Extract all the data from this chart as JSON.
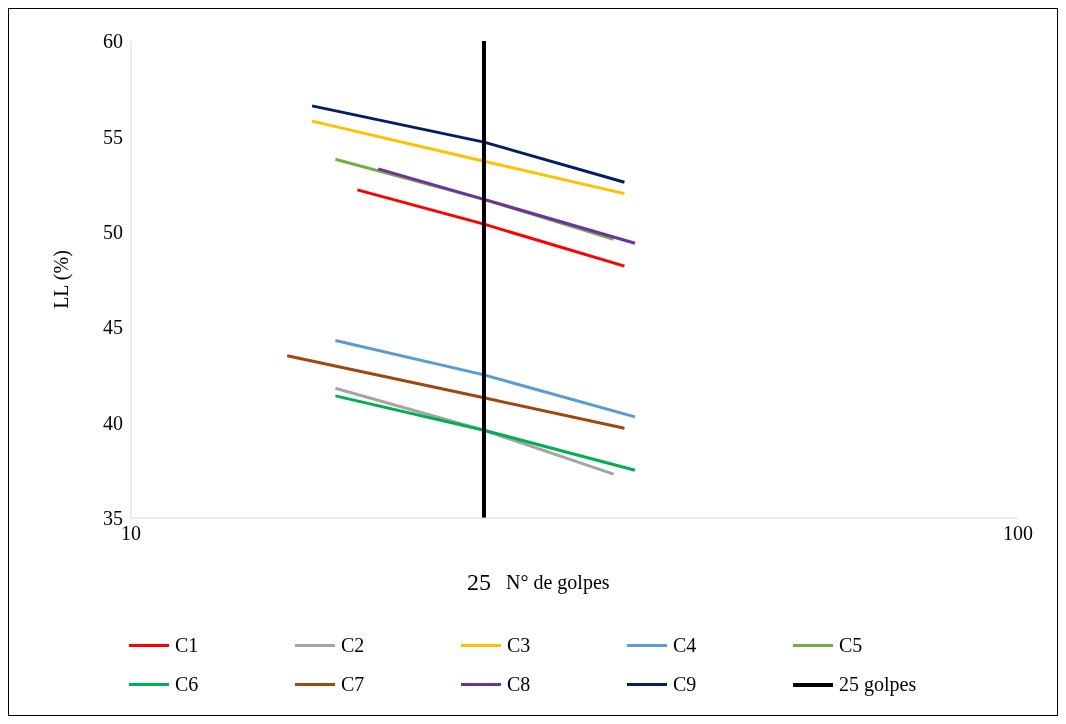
{
  "chart_data": {
    "type": "line",
    "xlabel": "N° de golpes",
    "ylabel": "LL (%)",
    "log": "x",
    "xlim": [
      10,
      100
    ],
    "xticks": [
      10,
      100
    ],
    "ylim": [
      35,
      60
    ],
    "yticks": [
      35,
      40,
      45,
      50,
      55,
      60
    ],
    "grid": false,
    "legend": "bottom",
    "marker": "none",
    "line_style": "solid",
    "series": [
      {
        "name": "C1",
        "color": "#ff0000",
        "x": [
          18,
          25,
          36
        ],
        "values": [
          52.2,
          50.4,
          48.2
        ]
      },
      {
        "name": "C2",
        "color": "#a5a5a5",
        "x": [
          17,
          25,
          35
        ],
        "values": [
          41.8,
          39.6,
          37.3
        ]
      },
      {
        "name": "C3",
        "color": "#ffc000",
        "x": [
          16,
          25,
          36
        ],
        "values": [
          55.8,
          53.7,
          52.0
        ]
      },
      {
        "name": "C4",
        "color": "#5b9bd5",
        "x": [
          17,
          25,
          37
        ],
        "values": [
          44.3,
          42.5,
          40.3
        ]
      },
      {
        "name": "C5",
        "color": "#70ad47",
        "x": [
          17,
          25,
          35
        ],
        "values": [
          53.8,
          51.7,
          49.6
        ]
      },
      {
        "name": "C6",
        "color": "#00b050",
        "x": [
          17,
          25,
          37
        ],
        "values": [
          41.4,
          39.6,
          37.5
        ]
      },
      {
        "name": "C7",
        "color": "#9e480e",
        "x": [
          15,
          25,
          36
        ],
        "values": [
          43.5,
          41.3,
          39.7
        ]
      },
      {
        "name": "C8",
        "color": "#7030a0",
        "x": [
          19,
          25,
          37
        ],
        "values": [
          53.3,
          51.7,
          49.4
        ]
      },
      {
        "name": "C9",
        "color": "#002060",
        "x": [
          16,
          25,
          36
        ],
        "values": [
          56.6,
          54.7,
          52.6
        ]
      }
    ],
    "ref_lines": [
      {
        "axis": "x",
        "value": 25,
        "label": "25 golpes",
        "color": "#000000"
      }
    ],
    "annotations": [
      "25"
    ]
  }
}
